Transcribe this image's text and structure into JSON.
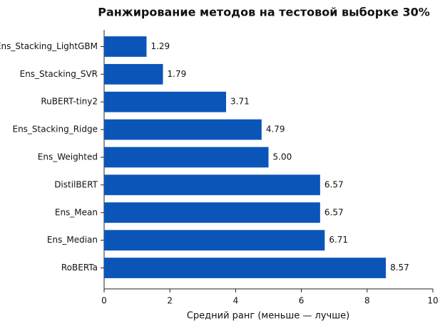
{
  "chart_data": {
    "type": "barh",
    "title": "Ранжирование методов на тестовой выборке 30%",
    "x_label": "Средний ранг (меньше — лучше)",
    "categories": [
      "Ens_Stacking_LightGBM",
      "Ens_Stacking_SVR",
      "RuBERT-tiny2",
      "Ens_Stacking_Ridge",
      "Ens_Weighted",
      "DistilBERT",
      "Ens_Mean",
      "Ens_Median",
      "RoBERTa"
    ],
    "values": [
      1.29,
      1.79,
      3.71,
      4.79,
      5,
      6.57,
      6.57,
      6.71,
      8.57
    ],
    "value_labels": [
      "1.29",
      "1.79",
      "3.71",
      "4.79",
      "5.00",
      "6.57",
      "6.57",
      "6.71",
      "8.57"
    ],
    "color": "#0b55b9",
    "xlim": [
      0,
      10
    ],
    "xticks": [
      0,
      2,
      4,
      6,
      8,
      10
    ],
    "grid": false
  }
}
